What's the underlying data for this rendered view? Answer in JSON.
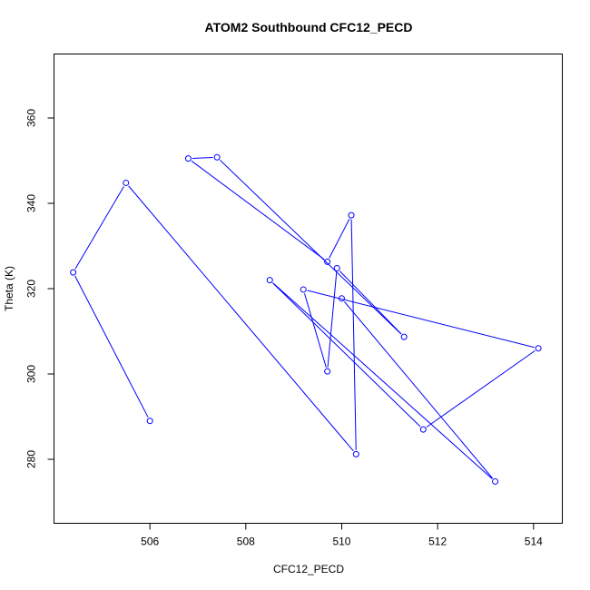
{
  "chart_data": {
    "type": "line",
    "title": "ATOM2 Southbound CFC12_PECD",
    "xlabel": "CFC12_PECD",
    "ylabel": "Theta (K)",
    "xlim": [
      504.0,
      514.6
    ],
    "ylim": [
      265.0,
      375.0
    ],
    "xticks": [
      506,
      508,
      510,
      512,
      514
    ],
    "yticks": [
      280,
      300,
      320,
      340,
      360
    ],
    "grid": false,
    "color": "#0000ff",
    "points": [
      {
        "x": 506.0,
        "y": 289.0
      },
      {
        "x": 504.4,
        "y": 323.8
      },
      {
        "x": 505.5,
        "y": 344.8
      },
      {
        "x": 510.3,
        "y": 281.2
      },
      {
        "x": 510.2,
        "y": 337.2
      },
      {
        "x": 509.7,
        "y": 326.3
      },
      {
        "x": 506.8,
        "y": 350.5
      },
      {
        "x": 507.4,
        "y": 350.8
      },
      {
        "x": 511.3,
        "y": 308.7
      },
      {
        "x": 509.9,
        "y": 324.8
      },
      {
        "x": 509.7,
        "y": 300.6
      },
      {
        "x": 509.2,
        "y": 319.8
      },
      {
        "x": 514.1,
        "y": 306.0
      },
      {
        "x": 511.7,
        "y": 287.0
      },
      {
        "x": 508.5,
        "y": 322.0
      },
      {
        "x": 513.2,
        "y": 274.8
      },
      {
        "x": 510.0,
        "y": 317.7
      }
    ]
  }
}
